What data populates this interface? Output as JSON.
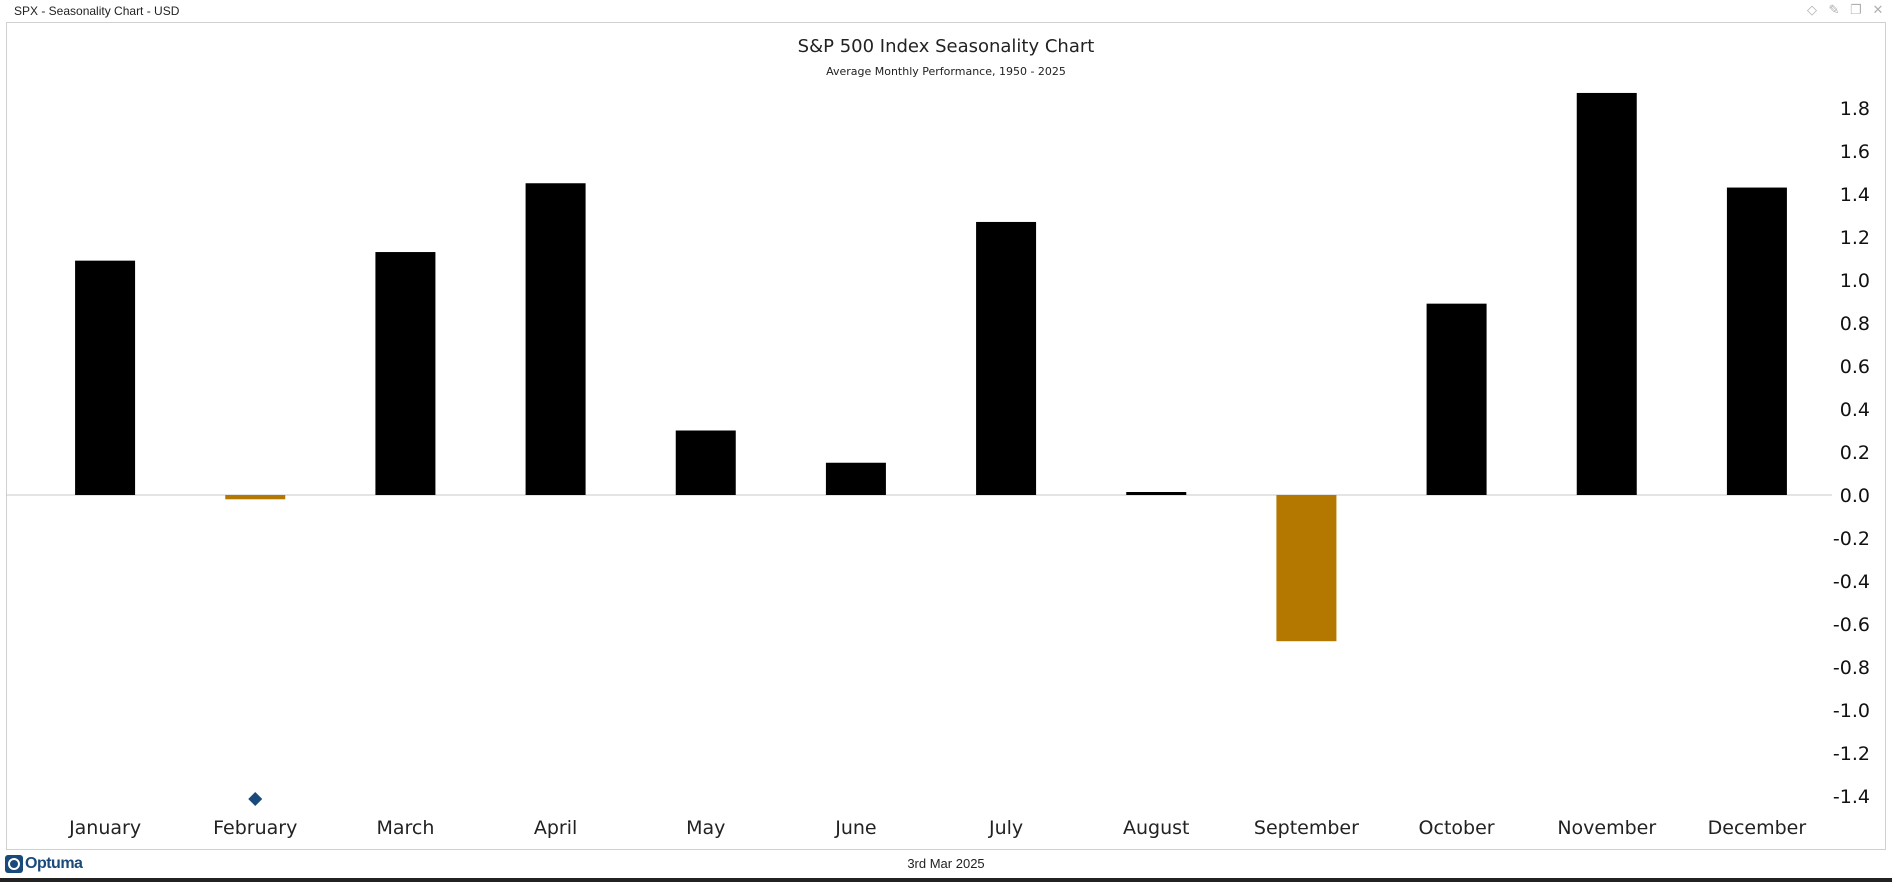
{
  "window": {
    "title": "SPX - Seasonality Chart - USD",
    "controls": [
      {
        "name": "diamond-icon",
        "glyph": "◇"
      },
      {
        "name": "pin-icon",
        "glyph": "✎"
      },
      {
        "name": "restore-icon",
        "glyph": "❐"
      },
      {
        "name": "close-icon",
        "glyph": "✕"
      }
    ]
  },
  "footer": {
    "logo_text": "Optuma",
    "date": "3rd Mar 2025"
  },
  "colors": {
    "positive": "#000000",
    "negative": "#b47800",
    "marker": "#1a4a7a",
    "zero_line": "#c8c8c8"
  },
  "chart_data": {
    "type": "bar",
    "title": "S&P 500 Index Seasonality Chart",
    "subtitle": "Average Monthly Performance, 1950 - 2025",
    "categories": [
      "January",
      "February",
      "March",
      "April",
      "May",
      "June",
      "July",
      "August",
      "September",
      "October",
      "November",
      "December"
    ],
    "values": [
      1.09,
      -0.02,
      1.13,
      1.45,
      0.3,
      0.15,
      1.27,
      0.01,
      -0.68,
      0.89,
      1.87,
      1.43
    ],
    "ylim": [
      -1.4,
      1.9
    ],
    "yticks": [
      1.8,
      1.6,
      1.4,
      1.2,
      1.0,
      0.8,
      0.6,
      0.4,
      0.2,
      0.0,
      -0.2,
      -0.4,
      -0.6,
      -0.8,
      -1.0,
      -1.2,
      -1.4
    ],
    "ytick_labels": [
      "1.8",
      "1.6",
      "1.4",
      "1.2",
      "1.0",
      "0.8",
      "0.6",
      "0.4",
      "0.2",
      "0.0",
      "-0.2",
      "-0.4",
      "-0.6",
      "-0.8",
      "-1.0",
      "-1.2",
      "-1.4"
    ],
    "current_month_marker": "February",
    "xlabel": "",
    "ylabel": "",
    "grid": false,
    "y_axis_position": "right"
  }
}
